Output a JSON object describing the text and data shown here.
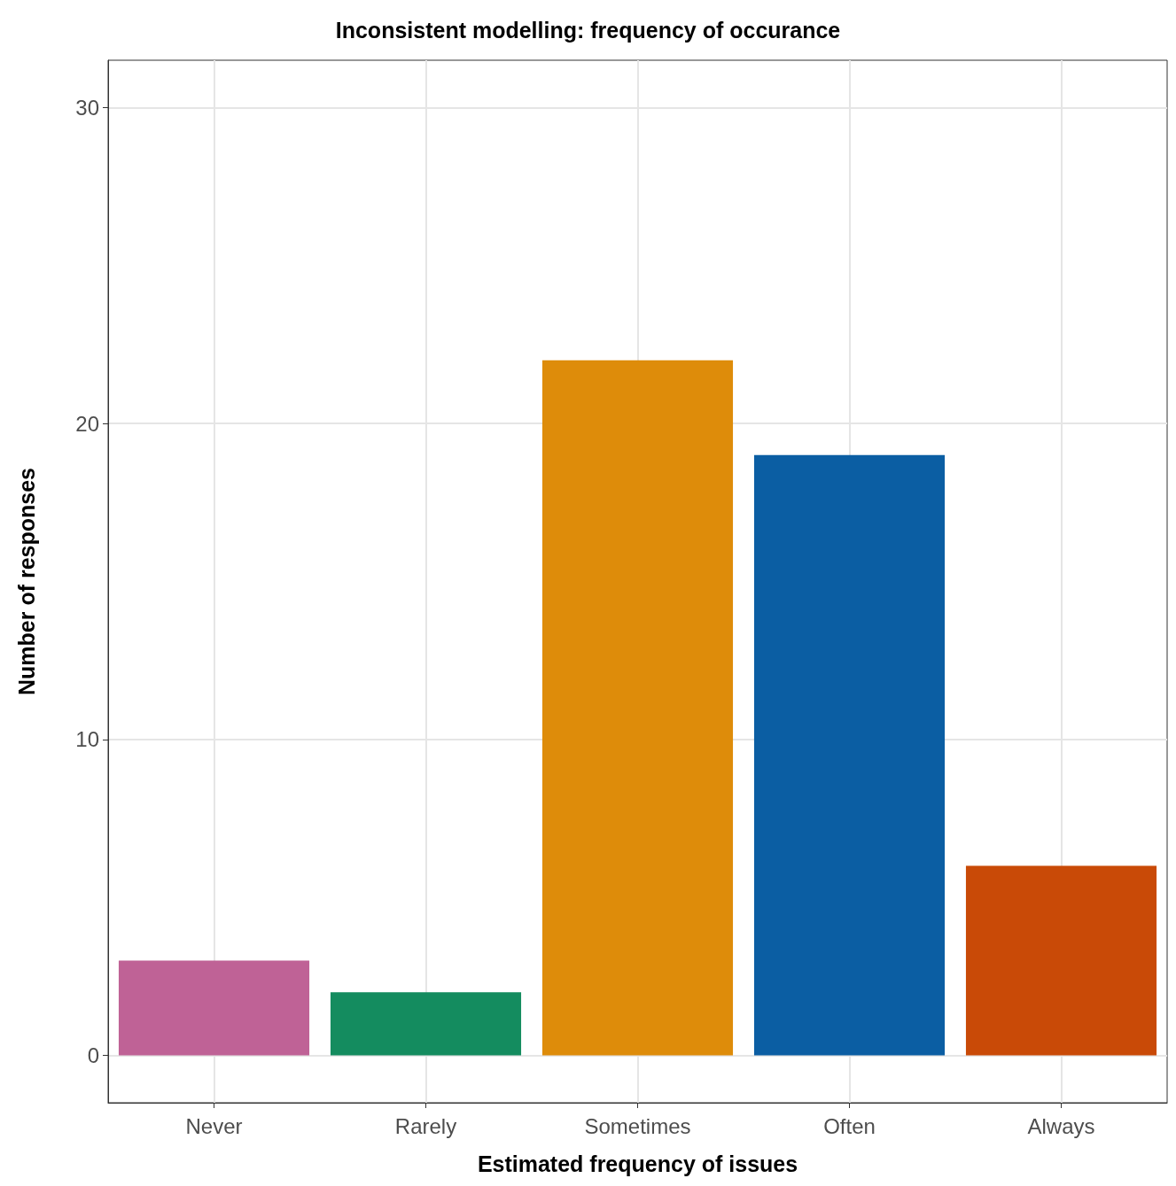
{
  "chart_data": {
    "type": "bar",
    "title": "Inconsistent modelling: frequency of occurance",
    "xlabel": "Estimated frequency of issues",
    "ylabel": "Number of responses",
    "categories": [
      "Never",
      "Rarely",
      "Sometimes",
      "Often",
      "Always"
    ],
    "values": [
      3,
      2,
      22,
      19,
      6
    ],
    "colors": [
      "#bf6296",
      "#148c5f",
      "#de8c0a",
      "#0b5ea3",
      "#c94a07"
    ],
    "ylim": [
      -1.5,
      31.5
    ],
    "yticks": [
      0,
      10,
      20,
      30
    ],
    "grid": true
  }
}
